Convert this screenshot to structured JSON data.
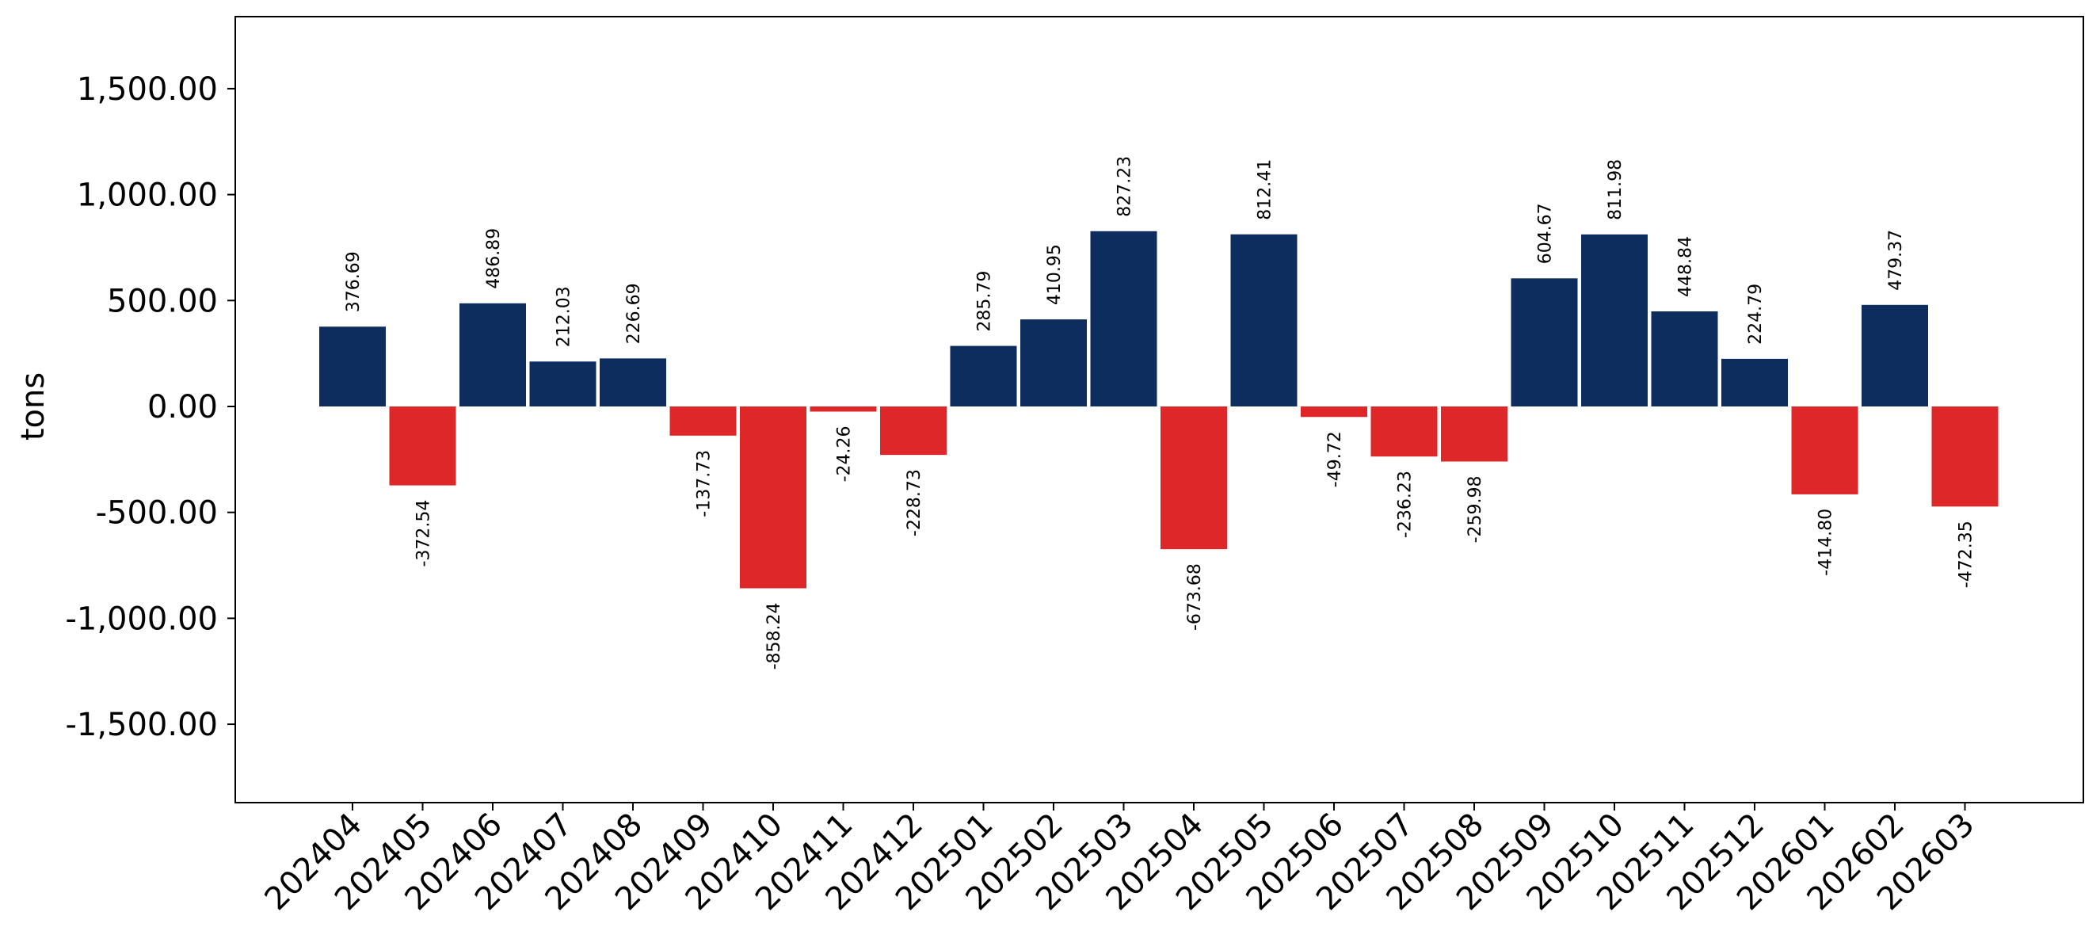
{
  "chart_data": {
    "type": "bar",
    "title": "",
    "xlabel": "",
    "ylabel": "tons",
    "ylim": [
      -1870,
      1840
    ],
    "yticks": [
      1500,
      1000,
      500,
      0,
      -500,
      -1000,
      -1500
    ],
    "ytick_labels": [
      "1,500.00",
      "1,000.00",
      "500.00",
      "0.00",
      "-500.00",
      "-1,000.00",
      "-1,500.00"
    ],
    "grid": false,
    "legend": "none",
    "colors": {
      "positive": "#0d2d5e",
      "negative": "#de2728"
    },
    "categories": [
      "202404",
      "202405",
      "202406",
      "202407",
      "202408",
      "202409",
      "202410",
      "202411",
      "202412",
      "202501",
      "202502",
      "202503",
      "202504",
      "202505",
      "202506",
      "202507",
      "202508",
      "202509",
      "202510",
      "202511",
      "202512",
      "202601",
      "202602",
      "202603"
    ],
    "values": [
      376.69,
      -372.54,
      486.89,
      212.03,
      226.69,
      -137.73,
      -858.24,
      -24.26,
      -228.73,
      285.79,
      410.95,
      827.23,
      -673.68,
      812.41,
      -49.72,
      -236.23,
      -259.98,
      604.67,
      811.98,
      448.84,
      224.79,
      -414.8,
      479.37,
      -472.35
    ],
    "labels": [
      "376.69",
      "-372.54",
      "486.89",
      "212.03",
      "226.69",
      "-137.73",
      "-858.24",
      "-24.26",
      "-228.73",
      "285.79",
      "410.95",
      "827.23",
      "-673.68",
      "812.41",
      "-49.72",
      "-236.23",
      "-259.98",
      "604.67",
      "811.98",
      "448.84",
      "224.79",
      "-414.80",
      "479.37",
      "-472.35"
    ]
  }
}
